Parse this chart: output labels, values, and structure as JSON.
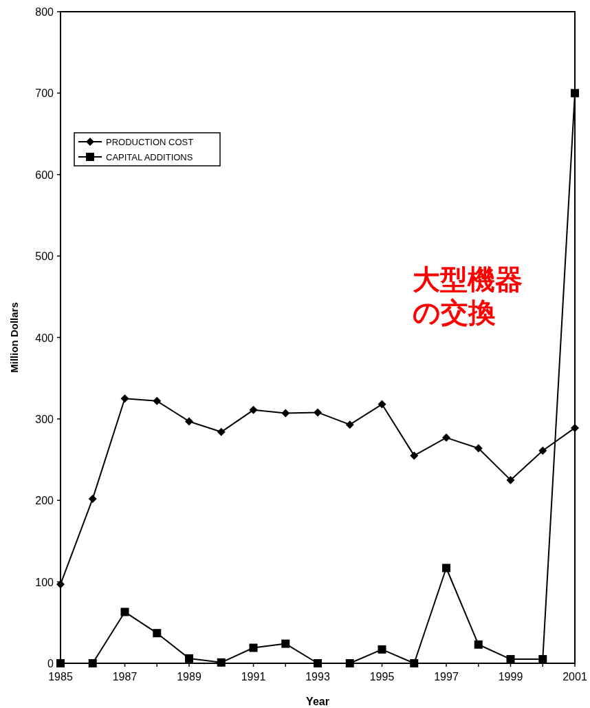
{
  "chart_data": {
    "type": "line",
    "xlabel": "Year",
    "ylabel": "Million Dollars",
    "x": [
      1985,
      1986,
      1987,
      1988,
      1989,
      1990,
      1991,
      1992,
      1993,
      1994,
      1995,
      1996,
      1997,
      1998,
      1999,
      2000,
      2001
    ],
    "series": [
      {
        "name": "PRODUCTION COST",
        "color": "#000000",
        "marker": "diamond",
        "values": [
          97,
          202,
          325,
          322,
          297,
          284,
          311,
          307,
          308,
          293,
          318,
          255,
          277,
          264,
          225,
          261,
          289
        ]
      },
      {
        "name": "CAPITAL ADDITIONS",
        "color": "#000000",
        "marker": "square",
        "values": [
          0,
          0,
          63,
          37,
          6,
          1,
          19,
          24,
          0,
          0,
          17,
          0,
          117,
          23,
          5,
          5,
          700
        ]
      }
    ],
    "xlim": [
      1985,
      2001
    ],
    "ylim": [
      0,
      800
    ],
    "xticks": [
      1985,
      {
        "value": 1986,
        "label": null
      },
      1987,
      {
        "value": 1988,
        "label": null
      },
      1989,
      {
        "value": 1990,
        "label": null
      },
      1991,
      {
        "value": 1992,
        "label": null
      },
      1993,
      {
        "value": 1994,
        "label": null
      },
      1995,
      {
        "value": 1996,
        "label": null
      },
      1997,
      {
        "value": 1998,
        "label": null
      },
      1999,
      {
        "value": 2000,
        "label": null
      },
      2001
    ],
    "yticks": [
      0,
      100,
      200,
      300,
      400,
      500,
      600,
      700,
      800
    ],
    "grid": false,
    "legend": "top left",
    "line_style": "solid",
    "annotations": [
      "大型機器の交換"
    ]
  }
}
